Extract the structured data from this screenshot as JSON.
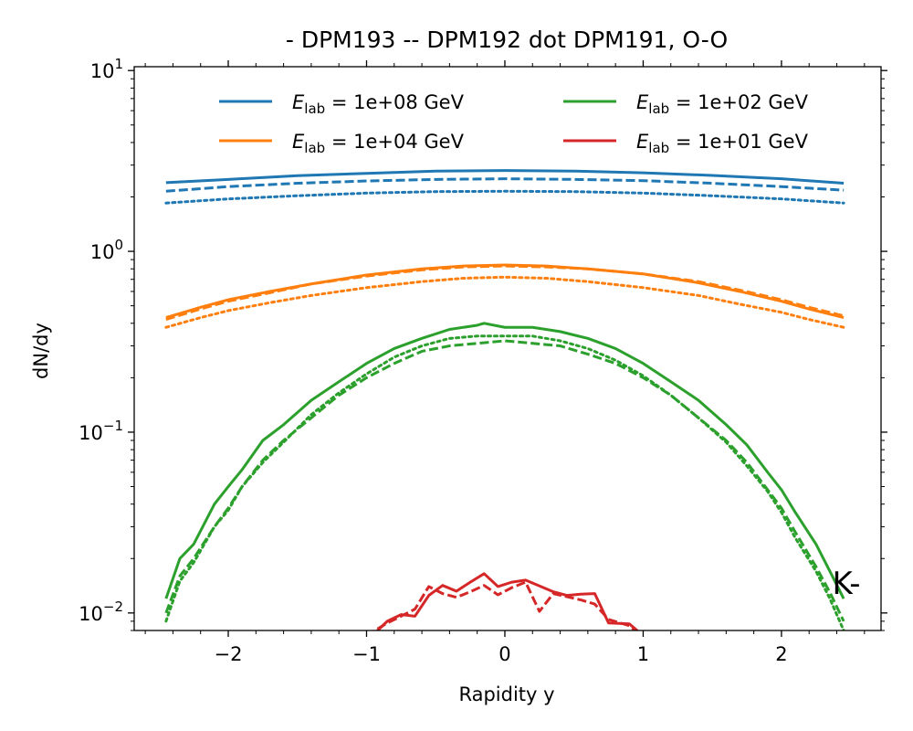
{
  "chart_data": {
    "type": "line",
    "title": "- DPM193 -- DPM192 dot DPM191, O-O",
    "xlabel": "Rapidity y",
    "ylabel": "dN/dy",
    "xlim": [
      -2.68,
      2.72
    ],
    "ylim": [
      0.008,
      10.5
    ],
    "yscale": "log",
    "x_ticks": [
      -2,
      -1,
      0,
      1,
      2
    ],
    "x_tick_labels": [
      "−2",
      "−1",
      "0",
      "1",
      "2"
    ],
    "y_ticks": [
      0.01,
      0.1,
      1,
      10
    ],
    "y_tick_labels": [
      {
        "base": "10",
        "exp": "−2"
      },
      {
        "base": "10",
        "exp": "−1"
      },
      {
        "base": "10",
        "exp": "0"
      },
      {
        "base": "10",
        "exp": "1"
      }
    ],
    "annotation": "K-",
    "linestyle_meaning": [
      "solid: DPM193",
      "dashed: DPM192",
      "dotted: DPM191"
    ],
    "legend": {
      "placement": "top",
      "columns": 2,
      "entries": [
        {
          "symbol": "E",
          "subscript": "lab",
          "text": " = 1e+08 GeV",
          "color": "#1f77b4"
        },
        {
          "symbol": "E",
          "subscript": "lab",
          "text": " = 1e+02 GeV",
          "color": "#2ca02c"
        },
        {
          "symbol": "E",
          "subscript": "lab",
          "text": " = 1e+04 GeV",
          "color": "#ff7f0e"
        },
        {
          "symbol": "E",
          "subscript": "lab",
          "text": " = 1e+01 GeV",
          "color": "#d62728"
        }
      ]
    },
    "series": [
      {
        "energy": "1e+08",
        "color": "#1f77b4",
        "style": "solid",
        "x": [
          -2.45,
          -2.0,
          -1.5,
          -1.0,
          -0.5,
          0.0,
          0.5,
          1.0,
          1.5,
          2.0,
          2.45
        ],
        "y": [
          2.4,
          2.5,
          2.62,
          2.7,
          2.78,
          2.8,
          2.78,
          2.72,
          2.63,
          2.52,
          2.38
        ]
      },
      {
        "energy": "1e+08",
        "color": "#1f77b4",
        "style": "dashed",
        "x": [
          -2.45,
          -2.0,
          -1.5,
          -1.0,
          -0.5,
          0.0,
          0.5,
          1.0,
          1.5,
          2.0,
          2.45
        ],
        "y": [
          2.15,
          2.28,
          2.38,
          2.45,
          2.5,
          2.52,
          2.5,
          2.46,
          2.38,
          2.28,
          2.18
        ]
      },
      {
        "energy": "1e+08",
        "color": "#1f77b4",
        "style": "dotted",
        "x": [
          -2.45,
          -2.0,
          -1.5,
          -1.0,
          -0.5,
          0.0,
          0.5,
          1.0,
          1.5,
          2.0,
          2.45
        ],
        "y": [
          1.85,
          1.95,
          2.03,
          2.1,
          2.14,
          2.15,
          2.14,
          2.1,
          2.03,
          1.95,
          1.85
        ]
      },
      {
        "energy": "1e+04",
        "color": "#ff7f0e",
        "style": "solid",
        "x": [
          -2.45,
          -2.2,
          -2.0,
          -1.7,
          -1.4,
          -1.0,
          -0.6,
          -0.3,
          0.0,
          0.3,
          0.6,
          1.0,
          1.4,
          1.7,
          2.0,
          2.2,
          2.45
        ],
        "y": [
          0.43,
          0.49,
          0.54,
          0.6,
          0.66,
          0.74,
          0.8,
          0.83,
          0.84,
          0.83,
          0.8,
          0.75,
          0.67,
          0.6,
          0.53,
          0.48,
          0.43
        ]
      },
      {
        "energy": "1e+04",
        "color": "#ff7f0e",
        "style": "dashed",
        "x": [
          -2.45,
          -2.2,
          -2.0,
          -1.7,
          -1.4,
          -1.0,
          -0.6,
          -0.3,
          0.0,
          0.3,
          0.6,
          1.0,
          1.4,
          1.7,
          2.0,
          2.2,
          2.45
        ],
        "y": [
          0.42,
          0.48,
          0.53,
          0.59,
          0.66,
          0.73,
          0.79,
          0.82,
          0.83,
          0.82,
          0.8,
          0.75,
          0.68,
          0.61,
          0.54,
          0.49,
          0.44
        ]
      },
      {
        "energy": "1e+04",
        "color": "#ff7f0e",
        "style": "dotted",
        "x": [
          -2.45,
          -2.2,
          -2.0,
          -1.7,
          -1.4,
          -1.0,
          -0.6,
          -0.3,
          0.0,
          0.3,
          0.6,
          1.0,
          1.4,
          1.7,
          2.0,
          2.2,
          2.45
        ],
        "y": [
          0.38,
          0.43,
          0.47,
          0.52,
          0.57,
          0.63,
          0.68,
          0.71,
          0.72,
          0.71,
          0.68,
          0.63,
          0.57,
          0.51,
          0.46,
          0.42,
          0.38
        ]
      },
      {
        "energy": "1e+02",
        "color": "#2ca02c",
        "style": "solid",
        "x": [
          -2.45,
          -2.35,
          -2.25,
          -2.1,
          -2.0,
          -1.9,
          -1.75,
          -1.6,
          -1.4,
          -1.2,
          -1.0,
          -0.8,
          -0.6,
          -0.4,
          -0.2,
          -0.15,
          0.0,
          0.2,
          0.4,
          0.6,
          0.8,
          1.0,
          1.2,
          1.4,
          1.6,
          1.75,
          1.9,
          2.0,
          2.1,
          2.25,
          2.35,
          2.45
        ],
        "y": [
          0.012,
          0.02,
          0.024,
          0.04,
          0.05,
          0.062,
          0.09,
          0.11,
          0.15,
          0.19,
          0.24,
          0.29,
          0.33,
          0.37,
          0.39,
          0.4,
          0.38,
          0.38,
          0.36,
          0.33,
          0.29,
          0.24,
          0.19,
          0.15,
          0.11,
          0.085,
          0.06,
          0.048,
          0.036,
          0.024,
          0.017,
          0.012
        ]
      },
      {
        "energy": "1e+02",
        "color": "#2ca02c",
        "style": "dashed",
        "x": [
          -2.45,
          -2.35,
          -2.25,
          -2.1,
          -2.0,
          -1.9,
          -1.75,
          -1.6,
          -1.4,
          -1.2,
          -1.0,
          -0.8,
          -0.6,
          -0.4,
          -0.2,
          0.0,
          0.2,
          0.4,
          0.6,
          0.8,
          1.0,
          1.2,
          1.4,
          1.6,
          1.75,
          1.9,
          2.0,
          2.1,
          2.25,
          2.35,
          2.45
        ],
        "y": [
          0.01,
          0.016,
          0.02,
          0.03,
          0.038,
          0.05,
          0.07,
          0.09,
          0.12,
          0.16,
          0.2,
          0.24,
          0.28,
          0.3,
          0.31,
          0.32,
          0.31,
          0.3,
          0.27,
          0.24,
          0.2,
          0.16,
          0.12,
          0.09,
          0.068,
          0.048,
          0.038,
          0.028,
          0.018,
          0.013,
          0.009
        ]
      },
      {
        "energy": "1e+02",
        "color": "#2ca02c",
        "style": "dotted",
        "x": [
          -2.45,
          -2.35,
          -2.25,
          -2.1,
          -2.0,
          -1.9,
          -1.75,
          -1.6,
          -1.4,
          -1.2,
          -1.0,
          -0.8,
          -0.6,
          -0.4,
          -0.2,
          0.0,
          0.2,
          0.4,
          0.6,
          0.8,
          1.0,
          1.2,
          1.4,
          1.6,
          1.75,
          1.9,
          2.0,
          2.1,
          2.25,
          2.35,
          2.45
        ],
        "y": [
          0.009,
          0.015,
          0.019,
          0.03,
          0.037,
          0.05,
          0.068,
          0.088,
          0.125,
          0.165,
          0.21,
          0.26,
          0.3,
          0.33,
          0.34,
          0.34,
          0.34,
          0.32,
          0.29,
          0.25,
          0.205,
          0.16,
          0.12,
          0.088,
          0.065,
          0.047,
          0.036,
          0.026,
          0.017,
          0.012,
          0.008
        ]
      },
      {
        "energy": "1e+01",
        "color": "#d62728",
        "style": "solid",
        "x": [
          -1.0,
          -0.85,
          -0.75,
          -0.65,
          -0.55,
          -0.45,
          -0.35,
          -0.25,
          -0.15,
          -0.05,
          0.05,
          0.15,
          0.25,
          0.35,
          0.45,
          0.55,
          0.65,
          0.75,
          0.9,
          1.0
        ],
        "y": [
          0.007,
          0.009,
          0.0098,
          0.0096,
          0.0125,
          0.0142,
          0.0132,
          0.0148,
          0.0165,
          0.014,
          0.0148,
          0.0152,
          0.0141,
          0.0131,
          0.0125,
          0.0127,
          0.0128,
          0.0088,
          0.0087,
          0.0075
        ]
      },
      {
        "energy": "1e+01",
        "color": "#d62728",
        "style": "dashed",
        "x": [
          -1.0,
          -0.85,
          -0.75,
          -0.65,
          -0.55,
          -0.45,
          -0.35,
          -0.25,
          -0.15,
          -0.05,
          0.05,
          0.15,
          0.25,
          0.35,
          0.45,
          0.55,
          0.65,
          0.75,
          0.9,
          1.0
        ],
        "y": [
          0.0075,
          0.0088,
          0.0096,
          0.0105,
          0.014,
          0.0128,
          0.0122,
          0.0131,
          0.0142,
          0.0126,
          0.0138,
          0.0148,
          0.0102,
          0.0128,
          0.0123,
          0.0118,
          0.0112,
          0.0092,
          0.0085,
          0.0074
        ]
      }
    ]
  }
}
